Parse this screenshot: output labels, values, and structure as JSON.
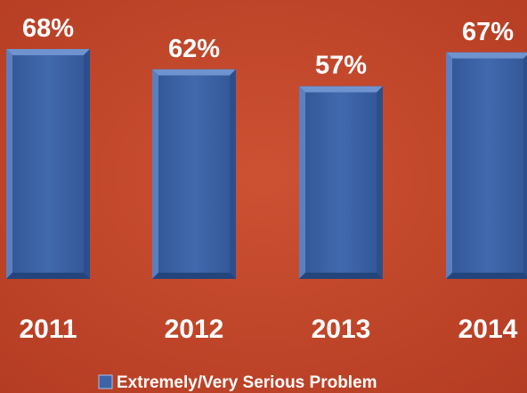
{
  "chart_data": {
    "type": "bar",
    "categories": [
      "2011",
      "2012",
      "2013",
      "2014"
    ],
    "series": [
      {
        "name": "Extremely/Very Serious Problem",
        "values": [
          68,
          62,
          57,
          67
        ],
        "labels": [
          "68%",
          "62%",
          "57%",
          "67%"
        ]
      }
    ],
    "ylim": [
      0,
      68
    ],
    "grid": false,
    "legend_position": "bottom"
  },
  "colors": {
    "background": "#c4472b",
    "bar_fill": "#3d64a6",
    "bar_bevel_light": "#6e93cf",
    "bar_bevel_dark": "#24457c",
    "text": "#ffffff"
  }
}
